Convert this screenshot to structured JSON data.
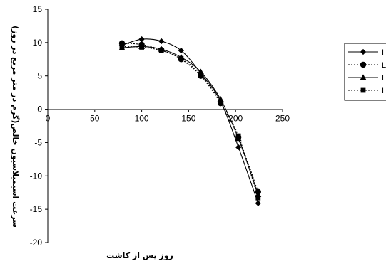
{
  "chart_data": {
    "type": "line",
    "title": "",
    "xlabel": "روز پس از کاشت",
    "ylabel": "سرعت اسیمیلاسیون خالص(گرم در متر مربع در روز)",
    "xlim": [
      0,
      250
    ],
    "ylim": [
      -20,
      15
    ],
    "x_ticks": [
      "0",
      "50",
      "100",
      "150",
      "200",
      "250"
    ],
    "y_ticks": [
      "15",
      "10",
      "5",
      "0",
      "-5",
      "-10",
      "-15",
      "-20"
    ],
    "x_tick_values": [
      0,
      50,
      100,
      150,
      200,
      250
    ],
    "y_tick_values": [
      15,
      10,
      5,
      0,
      -5,
      -10,
      -15,
      -20
    ],
    "grid": false,
    "legend_position": "right",
    "series": [
      {
        "legend_label": "I",
        "marker": "diamond",
        "line_style": "solid",
        "x": [
          79,
          100,
          121,
          142,
          163,
          184,
          203,
          224
        ],
        "y": [
          9.6,
          10.5,
          10.2,
          8.8,
          5.4,
          1.2,
          -5.7,
          -14.1
        ]
      },
      {
        "legend_label": "L",
        "marker": "circle",
        "line_style": "dotted",
        "x": [
          79,
          100,
          121,
          142,
          163,
          184,
          203,
          224
        ],
        "y": [
          9.9,
          9.7,
          8.9,
          7.5,
          5.0,
          0.9,
          -4.2,
          -12.4
        ]
      },
      {
        "legend_label": "I",
        "marker": "triangle",
        "line_style": "solid",
        "x": [
          79,
          100,
          121,
          142,
          163,
          184,
          203,
          224
        ],
        "y": [
          9.2,
          9.4,
          9.0,
          7.8,
          5.6,
          1.5,
          -4.4,
          -12.8
        ]
      },
      {
        "legend_label": "I",
        "marker": "square",
        "line_style": "dotted",
        "x": [
          79,
          100,
          121,
          142,
          163,
          184,
          203,
          224
        ],
        "y": [
          9.4,
          9.3,
          8.8,
          7.6,
          5.2,
          1.0,
          -4.0,
          -13.3
        ]
      }
    ]
  }
}
